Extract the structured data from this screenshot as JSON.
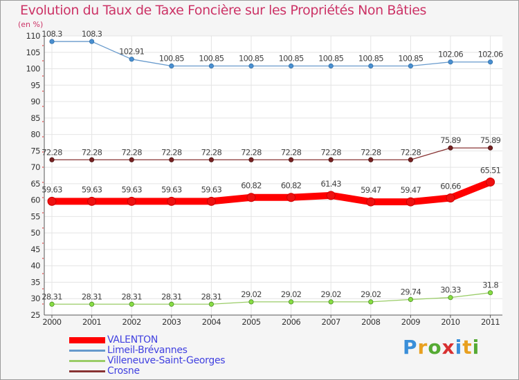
{
  "chart_data": {
    "type": "line",
    "title": "Evolution du Taux de Taxe Foncière sur les Propriétés Non Bâties",
    "ylabel": "(en %)",
    "xlabel": "",
    "ylim": [
      25,
      110
    ],
    "yticks": [
      25,
      30,
      35,
      40,
      45,
      50,
      55,
      60,
      65,
      70,
      75,
      80,
      85,
      90,
      95,
      100,
      105,
      110
    ],
    "categories": [
      "2000",
      "2001",
      "2002",
      "2003",
      "2004",
      "2005",
      "2006",
      "2007",
      "2008",
      "2009",
      "2010",
      "2011"
    ],
    "grid": true,
    "series": [
      {
        "name": "VALENTON",
        "color": "#ff0000",
        "values": [
          59.63,
          59.63,
          59.63,
          59.63,
          59.63,
          60.82,
          60.82,
          61.43,
          59.47,
          59.47,
          60.66,
          65.51
        ],
        "labels": [
          "59.63",
          "59.63",
          "59.63",
          "59.63",
          "59.63",
          "60.82",
          "60.82",
          "61.43",
          "59.47",
          "59.47",
          "60.66",
          "65.51"
        ]
      },
      {
        "name": "Limeil-Brévannes",
        "color": "#6699cc",
        "values": [
          108.3,
          108.3,
          102.91,
          100.85,
          100.85,
          100.85,
          100.85,
          100.85,
          100.85,
          100.85,
          102.06,
          102.06
        ],
        "labels": [
          "108.3",
          "108.3",
          "102.91",
          "100.85",
          "100.85",
          "100.85",
          "100.85",
          "100.85",
          "100.85",
          "100.85",
          "102.06",
          "102.06"
        ]
      },
      {
        "name": "Villeneuve-Saint-Georges",
        "color": "#99cc66",
        "values": [
          28.31,
          28.31,
          28.31,
          28.31,
          28.31,
          29.02,
          29.02,
          29.02,
          29.02,
          29.74,
          30.33,
          31.8
        ],
        "labels": [
          "28.31",
          "28.31",
          "28.31",
          "28.31",
          "28.31",
          "29.02",
          "29.02",
          "29.02",
          "29.02",
          "29.74",
          "30.33",
          "31.8"
        ]
      },
      {
        "name": "Crosne",
        "color": "#883333",
        "values": [
          72.28,
          72.28,
          72.28,
          72.28,
          72.28,
          72.28,
          72.28,
          72.28,
          72.28,
          72.28,
          75.89,
          75.89
        ],
        "labels": [
          "72.28",
          "72.28",
          "72.28",
          "72.28",
          "72.28",
          "72.28",
          "72.28",
          "72.28",
          "72.28",
          "72.28",
          "75.89",
          "75.89"
        ]
      }
    ]
  },
  "branding": {
    "logo_text": "Proxiti",
    "letters": [
      "P",
      "r",
      "o",
      "x",
      "i",
      "t",
      "i"
    ],
    "letter_colors": [
      "#3a8fd9",
      "#e8a020",
      "#55aa33",
      "#d83030",
      "#3a8fd9",
      "#e8a020",
      "#55aa33"
    ]
  }
}
